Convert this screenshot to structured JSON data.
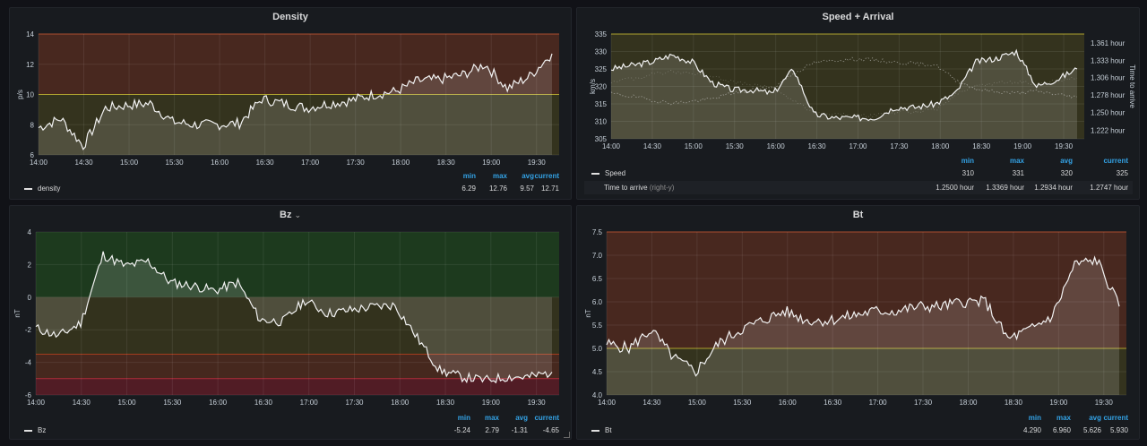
{
  "panels": {
    "density": {
      "title": "Density",
      "ylabel": "p/s",
      "yticks": [
        "14",
        "12",
        "10",
        "8",
        "6"
      ],
      "xticks": [
        "14:00",
        "14:30",
        "15:00",
        "15:30",
        "16:00",
        "16:30",
        "17:00",
        "17:30",
        "18:00",
        "18:30",
        "19:00",
        "19:30"
      ],
      "legend": {
        "headers": [
          "min",
          "max",
          "avg",
          "current"
        ],
        "series": "density",
        "values": [
          "6.29",
          "12.76",
          "9.57",
          "12.71"
        ]
      }
    },
    "speed": {
      "title": "Speed + Arrival",
      "ylabel": "km/s",
      "ylabel_right": "Time to arrive",
      "yticks": [
        "335",
        "330",
        "325",
        "320",
        "315",
        "310",
        "305"
      ],
      "yticks_right": [
        "1.361 hour",
        "1.333 hour",
        "1.306 hour",
        "1.278 hour",
        "1.250 hour",
        "1.222 hour"
      ],
      "xticks": [
        "14:00",
        "14:30",
        "15:00",
        "15:30",
        "16:00",
        "16:30",
        "17:00",
        "17:30",
        "18:00",
        "18:30",
        "19:00",
        "19:30"
      ],
      "legend": {
        "headers": [
          "min",
          "max",
          "avg",
          "current"
        ],
        "series1": "Speed",
        "values1": [
          "310",
          "331",
          "320",
          "325"
        ],
        "series2": "Time to arrive",
        "series2_suffix": "(right-y)",
        "values2": [
          "1.2500 hour",
          "1.3369 hour",
          "1.2934 hour",
          "1.2747 hour"
        ]
      }
    },
    "bz": {
      "title": "Bz",
      "ylabel": "nT",
      "yticks": [
        "4",
        "2",
        "0",
        "-2",
        "-4",
        "-6"
      ],
      "xticks": [
        "14:00",
        "14:30",
        "15:00",
        "15:30",
        "16:00",
        "16:30",
        "17:00",
        "17:30",
        "18:00",
        "18:30",
        "19:00",
        "19:30"
      ],
      "legend": {
        "headers": [
          "min",
          "max",
          "avg",
          "current"
        ],
        "series": "Bz",
        "values": [
          "-5.24",
          "2.79",
          "-1.31",
          "-4.65"
        ]
      }
    },
    "bt": {
      "title": "Bt",
      "ylabel": "nT",
      "yticks": [
        "7.5",
        "7.0",
        "6.5",
        "6.0",
        "5.5",
        "5.0",
        "4.5",
        "4.0"
      ],
      "xticks": [
        "14:00",
        "14:30",
        "15:00",
        "15:30",
        "16:00",
        "16:30",
        "17:00",
        "17:30",
        "18:00",
        "18:30",
        "19:00",
        "19:30"
      ],
      "legend": {
        "headers": [
          "min",
          "max",
          "avg",
          "current"
        ],
        "series": "Bt",
        "values": [
          "4.290",
          "6.960",
          "5.626",
          "5.930"
        ]
      }
    }
  },
  "colors": {
    "bg": "#111217",
    "panel": "#181b1f",
    "line": "#f2f2f2",
    "legendHeader": "#33a2e5",
    "threshRed": "#5a2a1a",
    "threshYellow": "#4a4418",
    "threshGreen": "#1e4a1c"
  },
  "chart_data": [
    {
      "type": "line",
      "title": "Density",
      "ylabel": "p/s",
      "ylim": [
        6,
        14
      ],
      "x": [
        "14:00",
        "14:15",
        "14:30",
        "14:45",
        "15:00",
        "15:15",
        "15:30",
        "15:45",
        "16:00",
        "16:15",
        "16:30",
        "16:45",
        "17:00",
        "17:15",
        "17:30",
        "17:45",
        "18:00",
        "18:15",
        "18:30",
        "18:45",
        "19:00",
        "19:15",
        "19:30",
        "19:45"
      ],
      "series": [
        {
          "name": "density",
          "values": [
            7.8,
            8.4,
            6.6,
            9.1,
            9.3,
            9.4,
            8.2,
            8.0,
            8.0,
            8.1,
            9.7,
            9.4,
            9.1,
            9.4,
            9.6,
            10.0,
            10.2,
            10.9,
            11.0,
            11.3,
            12.0,
            10.4,
            11.2,
            12.7
          ]
        }
      ]
    },
    {
      "type": "line",
      "title": "Speed + Arrival",
      "ylabel": "km/s",
      "ylim": [
        305,
        335
      ],
      "x": [
        "14:00",
        "14:15",
        "14:30",
        "14:45",
        "15:00",
        "15:15",
        "15:30",
        "15:45",
        "16:00",
        "16:15",
        "16:30",
        "16:45",
        "17:00",
        "17:15",
        "17:30",
        "17:45",
        "18:00",
        "18:15",
        "18:30",
        "18:45",
        "19:00",
        "19:15",
        "19:30",
        "19:45"
      ],
      "series": [
        {
          "name": "Speed",
          "values": [
            325,
            326,
            327,
            329,
            327,
            321,
            319,
            319,
            318,
            325,
            312,
            311,
            311,
            311,
            314,
            314,
            315,
            318,
            327,
            328,
            330,
            320,
            322,
            325
          ]
        },
        {
          "name": "Time to arrive",
          "axis": "right",
          "values": [
            1.28,
            1.276,
            1.27,
            1.265,
            1.268,
            1.272,
            1.281,
            1.286,
            1.29,
            1.312,
            1.329,
            1.333,
            1.335,
            1.334,
            1.33,
            1.328,
            1.326,
            1.302,
            1.288,
            1.283,
            1.281,
            1.284,
            1.279,
            1.275
          ]
        }
      ]
    },
    {
      "type": "line",
      "title": "Bz",
      "ylabel": "nT",
      "ylim": [
        -6,
        4
      ],
      "x": [
        "14:00",
        "14:15",
        "14:30",
        "14:45",
        "15:00",
        "15:15",
        "15:30",
        "15:45",
        "16:00",
        "16:15",
        "16:30",
        "16:45",
        "17:00",
        "17:15",
        "17:30",
        "17:45",
        "18:00",
        "18:15",
        "18:30",
        "18:45",
        "19:00",
        "19:15",
        "19:30",
        "19:45"
      ],
      "series": [
        {
          "name": "Bz",
          "values": [
            -1.9,
            -2.4,
            -1.6,
            2.6,
            1.9,
            2.2,
            0.9,
            0.7,
            0.4,
            0.9,
            -1.4,
            -1.5,
            -0.2,
            -1.0,
            -0.8,
            -0.6,
            -0.5,
            -2.5,
            -4.5,
            -4.9,
            -5.1,
            -4.9,
            -4.9,
            -4.6
          ]
        }
      ]
    },
    {
      "type": "line",
      "title": "Bt",
      "ylabel": "nT",
      "ylim": [
        4.0,
        7.5
      ],
      "x": [
        "14:00",
        "14:15",
        "14:30",
        "14:45",
        "15:00",
        "15:15",
        "15:30",
        "15:45",
        "16:00",
        "16:15",
        "16:30",
        "16:45",
        "17:00",
        "17:15",
        "17:30",
        "17:45",
        "18:00",
        "18:15",
        "18:30",
        "18:45",
        "19:00",
        "19:15",
        "19:30",
        "19:45"
      ],
      "series": [
        {
          "name": "Bt",
          "values": [
            5.1,
            5.0,
            5.4,
            4.8,
            4.5,
            5.1,
            5.4,
            5.6,
            5.8,
            5.6,
            5.6,
            5.7,
            5.8,
            5.8,
            5.9,
            5.9,
            6.0,
            6.0,
            5.2,
            5.4,
            5.7,
            6.8,
            6.9,
            5.9
          ]
        }
      ]
    }
  ]
}
